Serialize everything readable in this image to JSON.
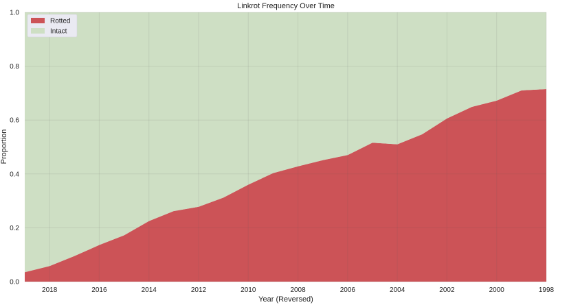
{
  "chart_data": {
    "type": "area",
    "stacked": true,
    "normalized": true,
    "title": "Linkrot Frequency Over Time",
    "xlabel": "Year (Reversed)",
    "ylabel": "Proportion",
    "x_reversed": true,
    "xlim": [
      2019,
      1998
    ],
    "ylim": [
      0,
      1
    ],
    "x_ticks": [
      2018,
      2016,
      2014,
      2012,
      2010,
      2008,
      2006,
      2004,
      2002,
      2000,
      1998
    ],
    "x_tick_labels": [
      "2018",
      "2016",
      "2014",
      "2012",
      "2010",
      "2008",
      "2006",
      "2004",
      "2002",
      "2000",
      "1998"
    ],
    "y_ticks": [
      0,
      0.2,
      0.4,
      0.6,
      0.8,
      1.0
    ],
    "y_tick_labels": [
      "0.0",
      "0.2",
      "0.4",
      "0.6",
      "0.8",
      "1.0"
    ],
    "grid": true,
    "legend_position": "top-left",
    "x": [
      2019,
      2018,
      2017,
      2016,
      2015,
      2014,
      2013,
      2012,
      2011,
      2010,
      2009,
      2008,
      2007,
      2006,
      2005,
      2004,
      2003,
      2002,
      2001,
      2000,
      1999,
      1998
    ],
    "series": [
      {
        "name": "Rotted",
        "color": "#cc5357",
        "values": [
          0.035,
          0.058,
          0.095,
          0.136,
          0.172,
          0.225,
          0.262,
          0.278,
          0.312,
          0.36,
          0.403,
          0.428,
          0.451,
          0.47,
          0.516,
          0.51,
          0.547,
          0.606,
          0.649,
          0.672,
          0.71,
          0.715
        ]
      },
      {
        "name": "Intact",
        "color": "#cedfc4",
        "values": [
          0.965,
          0.942,
          0.905,
          0.864,
          0.828,
          0.775,
          0.738,
          0.722,
          0.688,
          0.64,
          0.597,
          0.572,
          0.549,
          0.53,
          0.484,
          0.49,
          0.453,
          0.394,
          0.351,
          0.328,
          0.29,
          0.285
        ]
      }
    ]
  }
}
